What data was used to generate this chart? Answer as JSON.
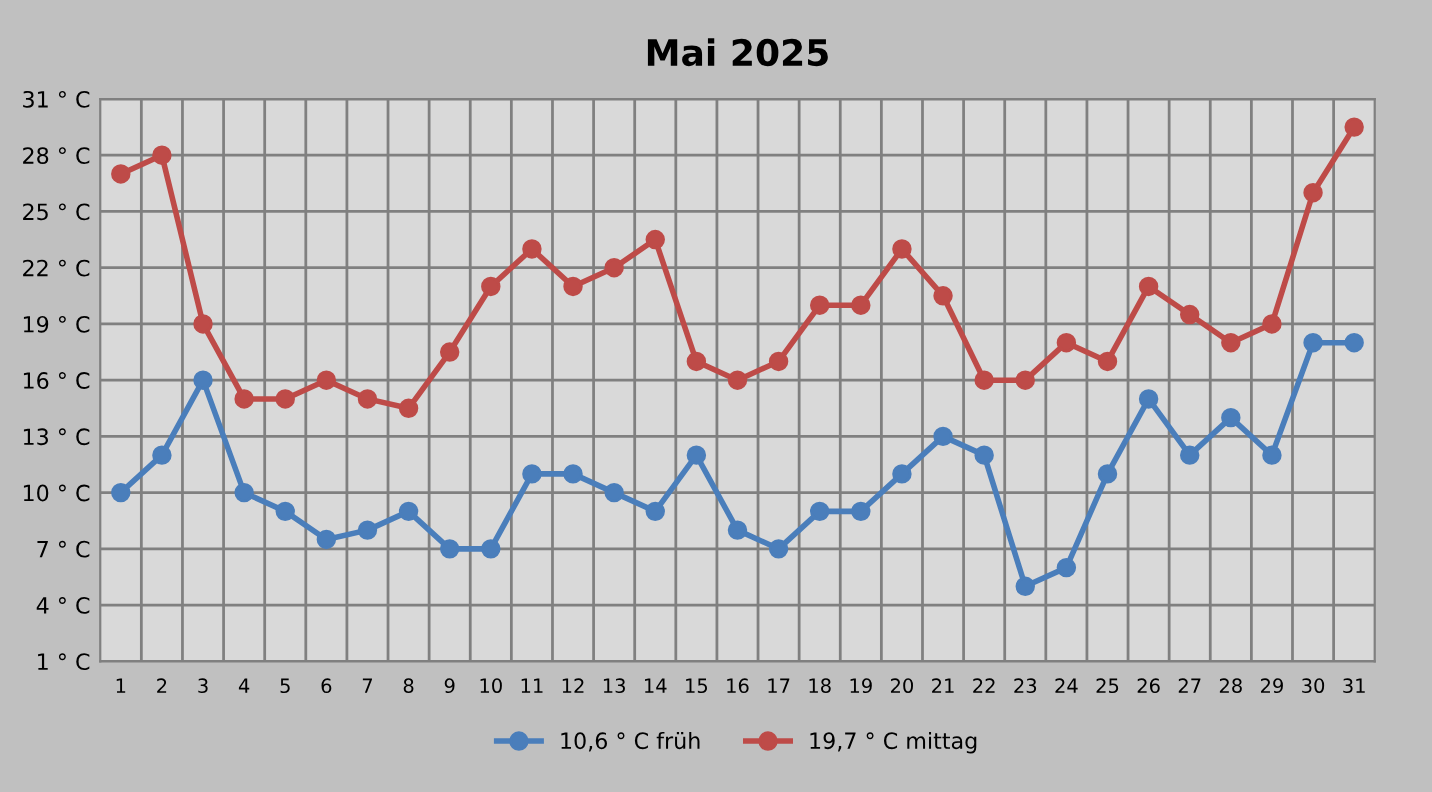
{
  "chart_data": {
    "type": "line",
    "title": "Mai 2025",
    "categories": [
      "1",
      "2",
      "3",
      "4",
      "5",
      "6",
      "7",
      "8",
      "9",
      "10",
      "11",
      "12",
      "13",
      "14",
      "15",
      "16",
      "17",
      "18",
      "19",
      "20",
      "21",
      "22",
      "23",
      "24",
      "25",
      "26",
      "27",
      "28",
      "29",
      "30",
      "31"
    ],
    "series": [
      {
        "name": "10,6 ° C früh",
        "color": "#4a7ebb",
        "values": [
          10,
          12,
          16,
          10,
          9,
          7.5,
          8,
          9,
          7,
          7,
          11,
          11,
          10,
          9,
          12,
          8,
          7,
          9,
          9,
          11,
          13,
          12,
          5,
          6,
          11,
          15,
          12,
          14,
          12,
          18,
          18
        ]
      },
      {
        "name": "19,7 ° C mittag",
        "color": "#be4b48",
        "values": [
          27,
          28,
          19,
          15,
          15,
          16,
          15,
          14.5,
          17.5,
          21,
          23,
          21,
          22,
          23.5,
          17,
          16,
          17,
          20,
          20,
          23,
          20.5,
          16,
          16,
          18,
          17,
          21,
          19.5,
          18,
          19,
          26,
          29.5
        ]
      }
    ],
    "ylim": [
      1,
      31
    ],
    "yticks": [
      {
        "value": 1,
        "label": "1 ° C"
      },
      {
        "value": 4,
        "label": "4 ° C"
      },
      {
        "value": 7,
        "label": "7 ° C"
      },
      {
        "value": 10,
        "label": "10 ° C"
      },
      {
        "value": 13,
        "label": "13 ° C"
      },
      {
        "value": 16,
        "label": "16 ° C"
      },
      {
        "value": 19,
        "label": "19 ° C"
      },
      {
        "value": 22,
        "label": "22 ° C"
      },
      {
        "value": 25,
        "label": "25 ° C"
      },
      {
        "value": 28,
        "label": "28 ° C"
      },
      {
        "value": 31,
        "label": "31 ° C"
      }
    ],
    "grid": true,
    "legend": "bottom",
    "marker": "circle",
    "line_style": "solid"
  }
}
